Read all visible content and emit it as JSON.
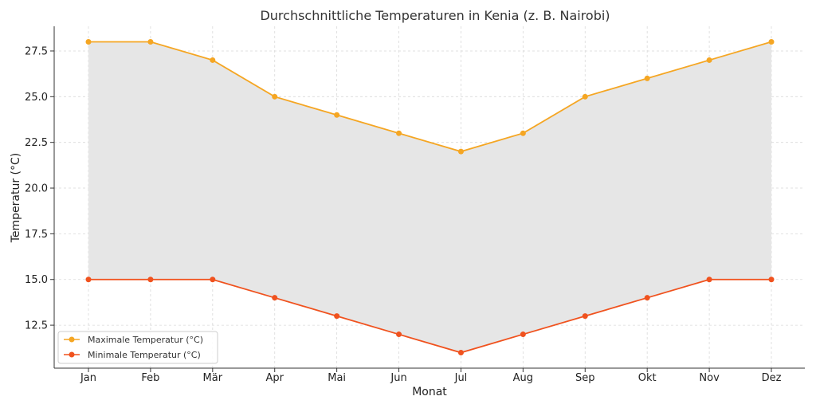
{
  "chart_data": {
    "type": "line",
    "title": "Durchschnittliche Temperaturen in Kenia (z. B. Nairobi)",
    "xlabel": "Monat",
    "ylabel": "Temperatur (°C)",
    "categories": [
      "Jan",
      "Feb",
      "Mär",
      "Apr",
      "Mai",
      "Jun",
      "Jul",
      "Aug",
      "Sep",
      "Okt",
      "Nov",
      "Dez"
    ],
    "series": [
      {
        "name": "Maximale Temperatur (°C)",
        "color": "#f5a623",
        "values": [
          28,
          28,
          27,
          25,
          24,
          23,
          22,
          23,
          25,
          26,
          27,
          28
        ]
      },
      {
        "name": "Minimale Temperatur (°C)",
        "color": "#f0521e",
        "values": [
          15,
          15,
          15,
          14,
          13,
          12,
          11,
          12,
          13,
          14,
          15,
          15
        ]
      }
    ],
    "fill_between": {
      "color": "#e6e6e6"
    },
    "yticks": [
      "12.5",
      "15.0",
      "17.5",
      "20.0",
      "22.5",
      "25.0",
      "27.5"
    ],
    "ylim": [
      10.15,
      28.85
    ],
    "grid": true,
    "legend_position": "lower-left"
  }
}
